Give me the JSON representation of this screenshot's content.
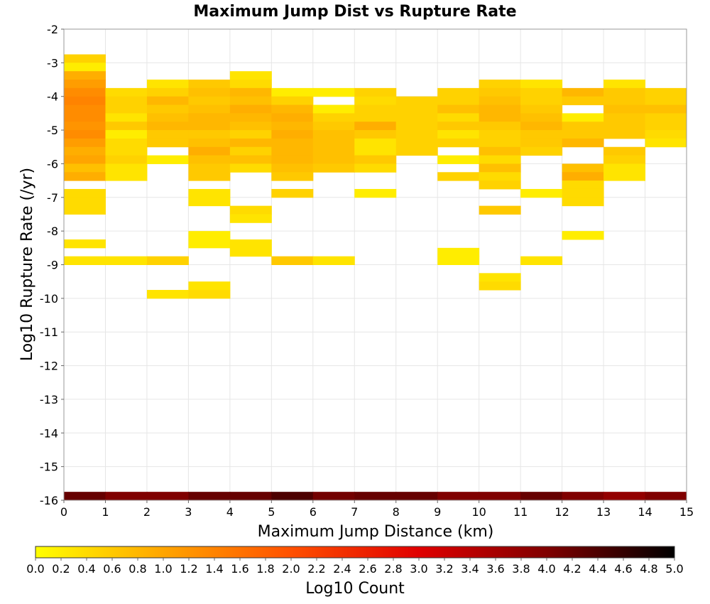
{
  "chart_data": {
    "type": "heatmap",
    "title": "Maximum Jump Dist vs Rupture Rate",
    "xlabel": "Maximum Jump Distance (km)",
    "ylabel": "Log10 Rupture Rate (/yr)",
    "xlim": [
      0,
      15
    ],
    "ylim": [
      -16,
      -2
    ],
    "x_ticks": [
      "0",
      "1",
      "2",
      "3",
      "4",
      "5",
      "6",
      "7",
      "8",
      "9",
      "10",
      "11",
      "12",
      "13",
      "14",
      "15"
    ],
    "y_ticks": [
      "-2",
      "-3",
      "-4",
      "-5",
      "-6",
      "-7",
      "-8",
      "-9",
      "-10",
      "-11",
      "-12",
      "-13",
      "-14",
      "-15",
      "-16"
    ],
    "grid": true,
    "bin_width_x": 1,
    "bin_height_y": 0.25,
    "colorbar": {
      "label": "Log10 Count",
      "range": [
        0,
        5
      ],
      "ticks": [
        "0.0",
        "0.2",
        "0.4",
        "0.6",
        "0.8",
        "1.0",
        "1.2",
        "1.4",
        "1.6",
        "1.8",
        "2.0",
        "2.2",
        "2.4",
        "2.6",
        "2.8",
        "3.0",
        "3.2",
        "3.4",
        "3.6",
        "3.8",
        "4.0",
        "4.2",
        "4.4",
        "4.6",
        "4.8",
        "5.0"
      ],
      "colors": [
        "#ffff00",
        "#ffa500",
        "#ff5000",
        "#e00000",
        "#800000",
        "#000000"
      ]
    },
    "cells": [
      [
        0,
        -16,
        4.2
      ],
      [
        1,
        -16,
        4.0
      ],
      [
        2,
        -16,
        4.0
      ],
      [
        3,
        -16,
        4.2
      ],
      [
        4,
        -16,
        4.2
      ],
      [
        5,
        -16,
        4.4
      ],
      [
        6,
        -16,
        4.1
      ],
      [
        7,
        -16,
        4.2
      ],
      [
        8,
        -16,
        4.2
      ],
      [
        9,
        -16,
        4.0
      ],
      [
        10,
        -16,
        4.0
      ],
      [
        11,
        -16,
        4.2
      ],
      [
        12,
        -16,
        4.0
      ],
      [
        13,
        -16,
        3.8
      ],
      [
        14,
        -16,
        4.0
      ],
      [
        0,
        -3,
        0.5
      ],
      [
        0,
        -3.25,
        0.2
      ],
      [
        0,
        -3.5,
        0.9
      ],
      [
        0,
        -3.75,
        1.1
      ],
      [
        0,
        -4,
        1.3
      ],
      [
        0,
        -4.25,
        1.4
      ],
      [
        0,
        -4.5,
        1.3
      ],
      [
        0,
        -4.75,
        1.3
      ],
      [
        0,
        -5,
        1.2
      ],
      [
        0,
        -5.25,
        1.3
      ],
      [
        0,
        -5.5,
        1.1
      ],
      [
        0,
        -5.75,
        0.9
      ],
      [
        0,
        -6,
        1.0
      ],
      [
        0,
        -6.25,
        0.7
      ],
      [
        0,
        -6.5,
        0.9
      ],
      [
        0,
        -7,
        0.4
      ],
      [
        0,
        -7.25,
        0.4
      ],
      [
        0,
        -7.5,
        0.4
      ],
      [
        0,
        -8.5,
        0.3
      ],
      [
        0,
        -9,
        0.3
      ],
      [
        1,
        -4,
        0.4
      ],
      [
        1,
        -4.25,
        0.5
      ],
      [
        1,
        -4.5,
        0.5
      ],
      [
        1,
        -4.75,
        0.3
      ],
      [
        1,
        -5,
        0.6
      ],
      [
        1,
        -5.25,
        0.2
      ],
      [
        1,
        -5.5,
        0.4
      ],
      [
        1,
        -5.75,
        0.4
      ],
      [
        1,
        -6,
        0.5
      ],
      [
        1,
        -6.25,
        0.3
      ],
      [
        1,
        -6.5,
        0.3
      ],
      [
        1,
        -9,
        0.3
      ],
      [
        2,
        -3.75,
        0.3
      ],
      [
        2,
        -4,
        0.5
      ],
      [
        2,
        -4.25,
        0.8
      ],
      [
        2,
        -4.5,
        0.6
      ],
      [
        2,
        -4.75,
        0.7
      ],
      [
        2,
        -5,
        0.8
      ],
      [
        2,
        -5.25,
        0.6
      ],
      [
        2,
        -5.5,
        0.6
      ],
      [
        2,
        -6,
        0.2
      ],
      [
        2,
        -9,
        0.5
      ],
      [
        2,
        -10,
        0.3
      ],
      [
        3,
        -3.75,
        0.6
      ],
      [
        3,
        -4,
        0.7
      ],
      [
        3,
        -4.25,
        0.6
      ],
      [
        3,
        -4.5,
        0.7
      ],
      [
        3,
        -4.75,
        0.8
      ],
      [
        3,
        -5,
        0.8
      ],
      [
        3,
        -5.25,
        0.6
      ],
      [
        3,
        -5.5,
        0.7
      ],
      [
        3,
        -5.75,
        0.9
      ],
      [
        3,
        -6,
        0.7
      ],
      [
        3,
        -6.25,
        0.6
      ],
      [
        3,
        -6.5,
        0.6
      ],
      [
        3,
        -7,
        0.3
      ],
      [
        3,
        -7.25,
        0.3
      ],
      [
        3,
        -8.25,
        0.2
      ],
      [
        3,
        -8.5,
        0.2
      ],
      [
        3,
        -9.75,
        0.3
      ],
      [
        3,
        -10,
        0.4
      ],
      [
        4,
        -3.5,
        0.3
      ],
      [
        4,
        -3.75,
        0.4
      ],
      [
        4,
        -4,
        0.8
      ],
      [
        4,
        -4.25,
        0.7
      ],
      [
        4,
        -4.5,
        0.9
      ],
      [
        4,
        -4.75,
        0.8
      ],
      [
        4,
        -5,
        0.7
      ],
      [
        4,
        -5.25,
        0.5
      ],
      [
        4,
        -5.5,
        0.8
      ],
      [
        4,
        -5.75,
        0.5
      ],
      [
        4,
        -6,
        0.7
      ],
      [
        4,
        -6.25,
        0.4
      ],
      [
        4,
        -7.5,
        0.4
      ],
      [
        4,
        -7.75,
        0.3
      ],
      [
        4,
        -8.5,
        0.3
      ],
      [
        4,
        -8.75,
        0.3
      ],
      [
        5,
        -4,
        0.2
      ],
      [
        5,
        -4.25,
        0.5
      ],
      [
        5,
        -4.5,
        0.8
      ],
      [
        5,
        -4.75,
        0.9
      ],
      [
        5,
        -5,
        0.8
      ],
      [
        5,
        -5.25,
        0.9
      ],
      [
        5,
        -5.5,
        0.8
      ],
      [
        5,
        -5.75,
        0.8
      ],
      [
        5,
        -6,
        0.8
      ],
      [
        5,
        -6.25,
        0.7
      ],
      [
        5,
        -6.5,
        0.6
      ],
      [
        5,
        -7,
        0.5
      ],
      [
        5,
        -9,
        0.6
      ],
      [
        6,
        -4,
        0.2
      ],
      [
        6,
        -4.5,
        0.2
      ],
      [
        6,
        -4.75,
        0.5
      ],
      [
        6,
        -5,
        0.6
      ],
      [
        6,
        -5.25,
        0.7
      ],
      [
        6,
        -5.5,
        0.7
      ],
      [
        6,
        -5.75,
        0.7
      ],
      [
        6,
        -6,
        0.7
      ],
      [
        6,
        -6.25,
        0.6
      ],
      [
        6,
        -9,
        0.3
      ],
      [
        7,
        -4,
        0.5
      ],
      [
        7,
        -4.25,
        0.4
      ],
      [
        7,
        -4.5,
        0.5
      ],
      [
        7,
        -4.75,
        0.5
      ],
      [
        7,
        -5,
        0.9
      ],
      [
        7,
        -5.25,
        0.6
      ],
      [
        7,
        -5.5,
        0.3
      ],
      [
        7,
        -5.75,
        0.3
      ],
      [
        7,
        -6,
        0.6
      ],
      [
        7,
        -6.25,
        0.4
      ],
      [
        7,
        -7,
        0.2
      ],
      [
        8,
        -4.25,
        0.5
      ],
      [
        8,
        -4.5,
        0.5
      ],
      [
        8,
        -4.75,
        0.5
      ],
      [
        8,
        -5,
        0.5
      ],
      [
        8,
        -5.25,
        0.5
      ],
      [
        8,
        -5.5,
        0.5
      ],
      [
        8,
        -5.75,
        0.5
      ],
      [
        9,
        -4,
        0.5
      ],
      [
        9,
        -4.25,
        0.5
      ],
      [
        9,
        -4.5,
        0.7
      ],
      [
        9,
        -4.75,
        0.4
      ],
      [
        9,
        -5,
        0.6
      ],
      [
        9,
        -5.25,
        0.3
      ],
      [
        9,
        -5.5,
        0.5
      ],
      [
        9,
        -6,
        0.2
      ],
      [
        9,
        -6.5,
        0.5
      ],
      [
        9,
        -8.75,
        0.2
      ],
      [
        9,
        -9,
        0.2
      ],
      [
        10,
        -3.75,
        0.5
      ],
      [
        10,
        -4,
        0.6
      ],
      [
        10,
        -4.25,
        0.7
      ],
      [
        10,
        -4.5,
        0.8
      ],
      [
        10,
        -4.75,
        0.8
      ],
      [
        10,
        -5,
        0.6
      ],
      [
        10,
        -5.25,
        0.5
      ],
      [
        10,
        -5.5,
        0.5
      ],
      [
        10,
        -5.75,
        0.7
      ],
      [
        10,
        -6,
        0.4
      ],
      [
        10,
        -6.25,
        0.7
      ],
      [
        10,
        -6.5,
        0.4
      ],
      [
        10,
        -6.75,
        0.5
      ],
      [
        10,
        -7.5,
        0.6
      ],
      [
        10,
        -9.5,
        0.3
      ],
      [
        10,
        -9.75,
        0.4
      ],
      [
        11,
        -3.75,
        0.3
      ],
      [
        11,
        -4,
        0.5
      ],
      [
        11,
        -4.25,
        0.5
      ],
      [
        11,
        -4.5,
        0.6
      ],
      [
        11,
        -4.75,
        0.7
      ],
      [
        11,
        -5,
        0.8
      ],
      [
        11,
        -5.25,
        0.6
      ],
      [
        11,
        -5.5,
        0.6
      ],
      [
        11,
        -5.75,
        0.5
      ],
      [
        11,
        -7,
        0.2
      ],
      [
        11,
        -9,
        0.3
      ],
      [
        12,
        -4,
        0.8
      ],
      [
        12,
        -4.25,
        0.6
      ],
      [
        12,
        -4.75,
        0.2
      ],
      [
        12,
        -5,
        0.6
      ],
      [
        12,
        -5.25,
        0.6
      ],
      [
        12,
        -5.5,
        0.8
      ],
      [
        12,
        -6.25,
        0.7
      ],
      [
        12,
        -6.5,
        0.9
      ],
      [
        12,
        -6.75,
        0.4
      ],
      [
        12,
        -7,
        0.4
      ],
      [
        12,
        -7.25,
        0.4
      ],
      [
        12,
        -8.25,
        0.2
      ],
      [
        13,
        -3.75,
        0.3
      ],
      [
        13,
        -4,
        0.6
      ],
      [
        13,
        -4.25,
        0.6
      ],
      [
        13,
        -4.5,
        0.7
      ],
      [
        13,
        -4.75,
        0.6
      ],
      [
        13,
        -5,
        0.6
      ],
      [
        13,
        -5.25,
        0.6
      ],
      [
        13,
        -5.75,
        0.6
      ],
      [
        13,
        -6,
        0.5
      ],
      [
        13,
        -6.25,
        0.3
      ],
      [
        13,
        -6.5,
        0.3
      ],
      [
        14,
        -4,
        0.5
      ],
      [
        14,
        -4.25,
        0.5
      ],
      [
        14,
        -4.5,
        0.7
      ],
      [
        14,
        -4.75,
        0.5
      ],
      [
        14,
        -5,
        0.5
      ],
      [
        14,
        -5.25,
        0.4
      ],
      [
        14,
        -5.5,
        0.3
      ]
    ]
  }
}
